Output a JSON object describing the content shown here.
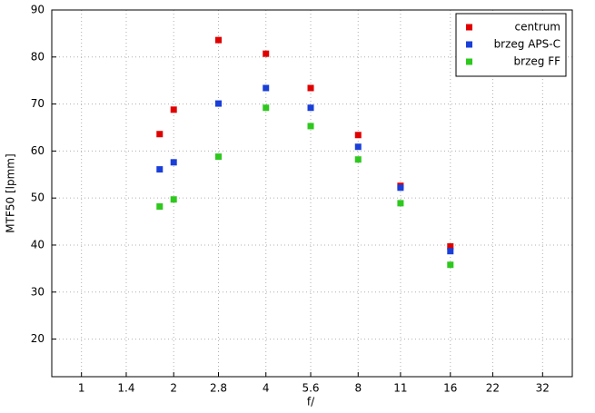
{
  "chart_data": {
    "type": "scatter",
    "x_label": "f/",
    "y_label": "MTF50 [lpmm]",
    "x": [
      1.8,
      2,
      2.8,
      4,
      5.6,
      8,
      11,
      16
    ],
    "series": [
      {
        "name": "centrum",
        "color": "#e00000",
        "values": [
          63.6,
          68.8,
          83.6,
          80.7,
          73.4,
          63.4,
          52.6,
          39.7
        ]
      },
      {
        "name": "brzeg APS-C",
        "color": "#1a3fd8",
        "values": [
          56.1,
          57.6,
          70.1,
          73.4,
          69.2,
          60.9,
          52.2,
          38.7
        ]
      },
      {
        "name": "brzeg FF",
        "color": "#2ec81e",
        "values": [
          48.2,
          49.7,
          58.8,
          69.2,
          65.3,
          58.2,
          48.9,
          35.8
        ]
      }
    ],
    "xlim": [
      0.8,
      40
    ],
    "xticks": [
      1,
      1.4,
      2,
      2.8,
      4,
      5.6,
      8,
      11,
      16,
      22,
      32
    ],
    "xscale": "log",
    "ylim": [
      12,
      90
    ],
    "yticks": [
      20,
      30,
      40,
      50,
      60,
      70,
      80,
      90
    ],
    "grid": true,
    "legend": "upper right"
  }
}
